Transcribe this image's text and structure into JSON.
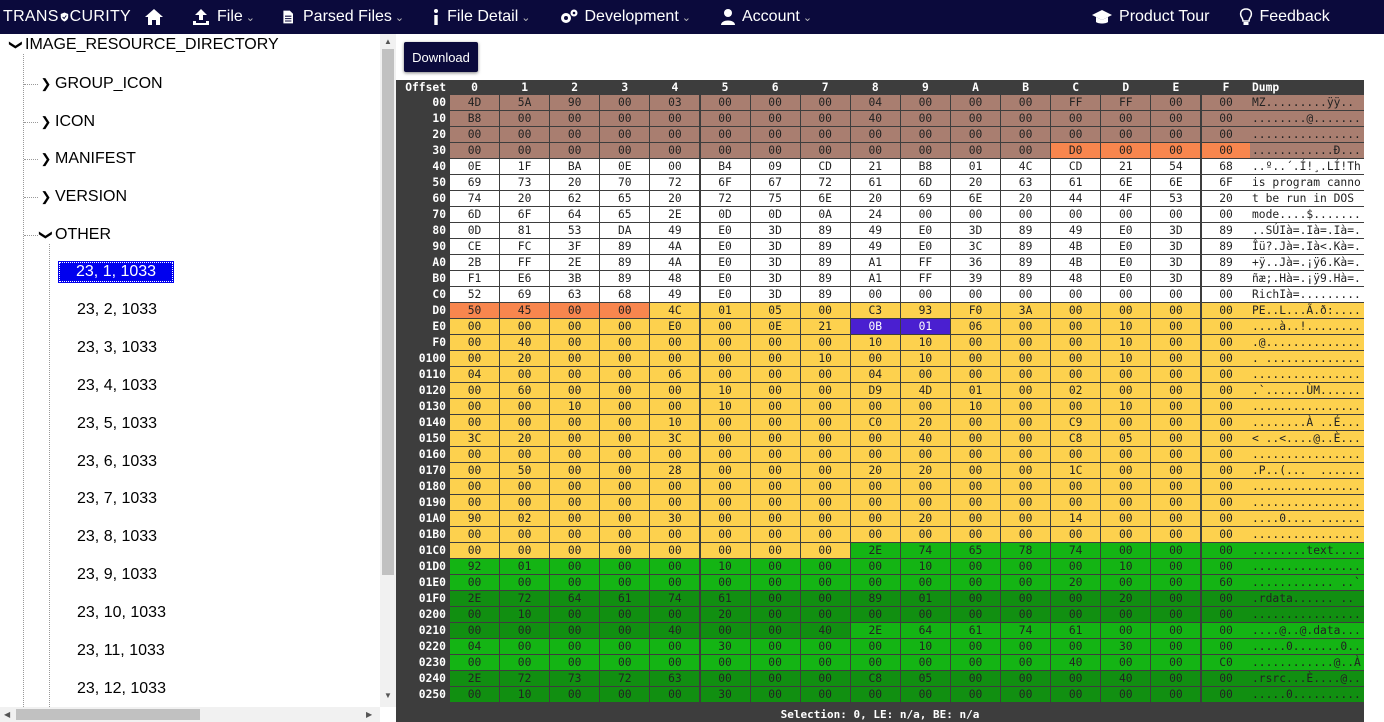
{
  "brand": {
    "left": "TRANS",
    "right": "CURITY"
  },
  "nav": {
    "home_icon": "home-icon",
    "file": "File",
    "parsed": "Parsed Files",
    "detail": "File Detail",
    "dev": "Development",
    "account": "Account",
    "tour": "Product Tour",
    "feedback": "Feedback"
  },
  "tree": {
    "root": "IMAGE_RESOURCE_DIRECTORY",
    "children": [
      "GROUP_ICON",
      "ICON",
      "MANIFEST",
      "VERSION",
      "OTHER"
    ],
    "leaves": [
      "23, 1, 1033",
      "23, 2, 1033",
      "23, 3, 1033",
      "23, 4, 1033",
      "23, 5, 1033",
      "23, 6, 1033",
      "23, 7, 1033",
      "23, 8, 1033",
      "23, 9, 1033",
      "23, 10, 1033",
      "23, 11, 1033",
      "23, 12, 1033"
    ],
    "selected_index": 0
  },
  "download_label": "Download",
  "hex": {
    "offset_header": "Offset",
    "columns": [
      "0",
      "1",
      "2",
      "3",
      "4",
      "5",
      "6",
      "7",
      "8",
      "9",
      "A",
      "B",
      "C",
      "D",
      "E",
      "F"
    ],
    "dump_header": "Dump",
    "colors": {
      "brown": "#a97e70",
      "white": "#ffffff",
      "yellow": "#fdd14e",
      "green": "#14b414",
      "dkgreen": "#118f11",
      "orange": "#f8864e",
      "purple": "#4a1fd0"
    },
    "rows": [
      {
        "o": "00",
        "b": "4D 5A 90 00 03 00 00 00 04 00 00 00 FF FF 00 00",
        "d": "MZ.........ÿÿ.."
      },
      {
        "o": "10",
        "b": "B8 00 00 00 00 00 00 00 40 00 00 00 00 00 00 00",
        "d": "........@......."
      },
      {
        "o": "20",
        "b": "00 00 00 00 00 00 00 00 00 00 00 00 00 00 00 00",
        "d": "................"
      },
      {
        "o": "30",
        "b": "00 00 00 00 00 00 00 00 00 00 00 00 D0 00 00 00",
        "d": "............Ð..."
      },
      {
        "o": "40",
        "b": "0E 1F BA 0E 00 B4 09 CD 21 B8 01 4C CD 21 54 68",
        "d": "..º..´.Í!¸.LÍ!Th"
      },
      {
        "o": "50",
        "b": "69 73 20 70 72 6F 67 72 61 6D 20 63 61 6E 6E 6F",
        "d": "is program canno"
      },
      {
        "o": "60",
        "b": "74 20 62 65 20 72 75 6E 20 69 6E 20 44 4F 53 20",
        "d": "t be run in DOS "
      },
      {
        "o": "70",
        "b": "6D 6F 64 65 2E 0D 0D 0A 24 00 00 00 00 00 00 00",
        "d": "mode....$......."
      },
      {
        "o": "80",
        "b": "0D 81 53 DA 49 E0 3D 89 49 E0 3D 89 49 E0 3D 89",
        "d": "..SÚIà=.Ià=.Ià=."
      },
      {
        "o": "90",
        "b": "CE FC 3F 89 4A E0 3D 89 49 E0 3C 89 4B E0 3D 89",
        "d": "Îü?.Jà=.Ià<.Kà=."
      },
      {
        "o": "A0",
        "b": "2B FF 2E 89 4A E0 3D 89 A1 FF 36 89 4B E0 3D 89",
        "d": "+ÿ..Jà=.¡ÿ6.Kà=."
      },
      {
        "o": "B0",
        "b": "F1 E6 3B 89 48 E0 3D 89 A1 FF 39 89 48 E0 3D 89",
        "d": "ñæ;.Hà=.¡ÿ9.Hà=."
      },
      {
        "o": "C0",
        "b": "52 69 63 68 49 E0 3D 89 00 00 00 00 00 00 00 00",
        "d": "RichIà=........."
      },
      {
        "o": "D0",
        "b": "50 45 00 00 4C 01 05 00 C3 93 F0 3A 00 00 00 00",
        "d": "PE..L...Ã.ð:...."
      },
      {
        "o": "E0",
        "b": "00 00 00 00 E0 00 0E 21 0B 01 06 00 00 10 00 00",
        "d": "....à..!........"
      },
      {
        "o": "F0",
        "b": "00 40 00 00 00 00 00 00 10 10 00 00 00 10 00 00",
        "d": ".@.............."
      },
      {
        "o": "0100",
        "b": "00 20 00 00 00 00 00 10 00 10 00 00 00 10 00 00",
        "d": ". .............."
      },
      {
        "o": "0110",
        "b": "04 00 00 00 06 00 00 00 04 00 00 00 00 00 00 00",
        "d": "................"
      },
      {
        "o": "0120",
        "b": "00 60 00 00 00 10 00 00 D9 4D 01 00 02 00 00 00",
        "d": ".`......ÙM......"
      },
      {
        "o": "0130",
        "b": "00 00 10 00 00 10 00 00 00 00 10 00 00 10 00 00",
        "d": "................"
      },
      {
        "o": "0140",
        "b": "00 00 00 00 10 00 00 00 C0 20 00 00 C9 00 00 00",
        "d": "........À ..É..."
      },
      {
        "o": "0150",
        "b": "3C 20 00 00 3C 00 00 00 00 40 00 00 C8 05 00 00",
        "d": "< ..<....@..È..."
      },
      {
        "o": "0160",
        "b": "00 00 00 00 00 00 00 00 00 00 00 00 00 00 00 00",
        "d": "................"
      },
      {
        "o": "0170",
        "b": "00 50 00 00 28 00 00 00 20 20 00 00 1C 00 00 00",
        "d": ".P..(...  ......"
      },
      {
        "o": "0180",
        "b": "00 00 00 00 00 00 00 00 00 00 00 00 00 00 00 00",
        "d": "................"
      },
      {
        "o": "0190",
        "b": "00 00 00 00 00 00 00 00 00 00 00 00 00 00 00 00",
        "d": "................"
      },
      {
        "o": "01A0",
        "b": "90 02 00 00 30 00 00 00 00 20 00 00 14 00 00 00",
        "d": "....0.... ......"
      },
      {
        "o": "01B0",
        "b": "00 00 00 00 00 00 00 00 00 00 00 00 00 00 00 00",
        "d": "................"
      },
      {
        "o": "01C0",
        "b": "00 00 00 00 00 00 00 00 2E 74 65 78 74 00 00 00",
        "d": "........text...."
      },
      {
        "o": "01D0",
        "b": "92 01 00 00 00 10 00 00 00 10 00 00 00 10 00 00",
        "d": "................"
      },
      {
        "o": "01E0",
        "b": "00 00 00 00 00 00 00 00 00 00 00 00 20 00 00 60",
        "d": "............ ..`"
      },
      {
        "o": "01F0",
        "b": "2E 72 64 61 74 61 00 00 89 01 00 00 00 20 00 00",
        "d": ".rdata...... .."
      },
      {
        "o": "0200",
        "b": "00 10 00 00 00 20 00 00 00 00 00 00 00 00 00 00",
        "d": "................"
      },
      {
        "o": "0210",
        "b": "00 00 00 00 40 00 00 40 2E 64 61 74 61 00 00 00",
        "d": "....@..@.data..."
      },
      {
        "o": "0220",
        "b": "04 00 00 00 00 30 00 00 00 10 00 00 00 30 00 00",
        "d": ".....0.......0.."
      },
      {
        "o": "0230",
        "b": "00 00 00 00 00 00 00 00 00 00 00 00 40 00 00 C0",
        "d": "............@..À"
      },
      {
        "o": "0240",
        "b": "2E 72 73 72 63 00 00 00 C8 05 00 00 00 40 00 00",
        "d": ".rsrc...È....@.."
      },
      {
        "o": "0250",
        "b": "00 10 00 00 00 30 00 00 00 00 00 00 00 00 00 00",
        "d": ".....0.........."
      }
    ]
  },
  "status": "Selection: 0, LE: n/a, BE: n/a"
}
